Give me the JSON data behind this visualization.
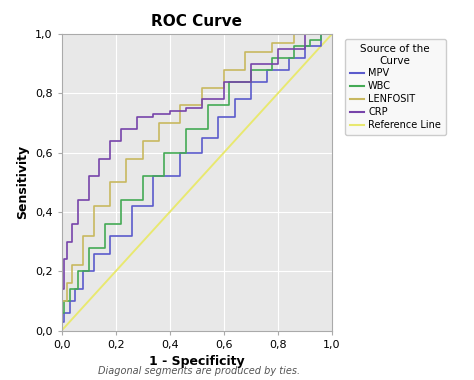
{
  "title": "ROC Curve",
  "xlabel": "1 - Specificity",
  "ylabel": "Sensitivity",
  "footnote": "Diagonal segments are produced by ties.",
  "xlim": [
    0.0,
    1.0
  ],
  "ylim": [
    0.0,
    1.0
  ],
  "xticks": [
    0.0,
    0.2,
    0.4,
    0.6,
    0.8,
    1.0
  ],
  "yticks": [
    0.0,
    0.2,
    0.4,
    0.6,
    0.8,
    1.0
  ],
  "xtick_labels": [
    "0,0",
    "0,2",
    "0,4",
    "0,6",
    "0,8",
    "1,0"
  ],
  "ytick_labels": [
    "0,0",
    "0,2",
    "0,4",
    "0,6",
    "0,8",
    "1,0"
  ],
  "plot_bg_color": "#e8e8e8",
  "fig_bg_color": "#ffffff",
  "legend_title": "Source of the\nCurve",
  "curves": {
    "MPV": {
      "color": "#5b5bcc",
      "x": [
        0.0,
        0.0,
        0.01,
        0.01,
        0.03,
        0.03,
        0.05,
        0.05,
        0.08,
        0.08,
        0.12,
        0.12,
        0.18,
        0.18,
        0.26,
        0.26,
        0.34,
        0.34,
        0.44,
        0.44,
        0.52,
        0.52,
        0.58,
        0.58,
        0.64,
        0.64,
        0.7,
        0.7,
        0.76,
        0.76,
        0.84,
        0.84,
        0.9,
        0.9,
        0.96,
        0.96,
        1.0,
        1.0
      ],
      "y": [
        0.0,
        0.03,
        0.03,
        0.06,
        0.06,
        0.1,
        0.1,
        0.14,
        0.14,
        0.2,
        0.2,
        0.26,
        0.26,
        0.32,
        0.32,
        0.42,
        0.42,
        0.52,
        0.52,
        0.6,
        0.6,
        0.65,
        0.65,
        0.72,
        0.72,
        0.78,
        0.78,
        0.84,
        0.84,
        0.88,
        0.88,
        0.92,
        0.92,
        0.96,
        0.96,
        1.0,
        1.0,
        1.0
      ]
    },
    "WBC": {
      "color": "#44aa55",
      "x": [
        0.0,
        0.0,
        0.01,
        0.01,
        0.03,
        0.03,
        0.06,
        0.06,
        0.1,
        0.1,
        0.16,
        0.16,
        0.22,
        0.22,
        0.3,
        0.3,
        0.38,
        0.38,
        0.46,
        0.46,
        0.54,
        0.54,
        0.62,
        0.62,
        0.7,
        0.7,
        0.78,
        0.78,
        0.86,
        0.86,
        0.92,
        0.92,
        0.96,
        0.96,
        1.0,
        1.0
      ],
      "y": [
        0.0,
        0.06,
        0.06,
        0.1,
        0.1,
        0.14,
        0.14,
        0.2,
        0.2,
        0.28,
        0.28,
        0.36,
        0.36,
        0.44,
        0.44,
        0.52,
        0.52,
        0.6,
        0.6,
        0.68,
        0.68,
        0.76,
        0.76,
        0.84,
        0.84,
        0.88,
        0.88,
        0.92,
        0.92,
        0.96,
        0.96,
        0.98,
        0.98,
        1.0,
        1.0,
        1.0
      ]
    },
    "LENFOSIT": {
      "color": "#c8b860",
      "x": [
        0.0,
        0.0,
        0.02,
        0.02,
        0.04,
        0.04,
        0.08,
        0.08,
        0.12,
        0.12,
        0.18,
        0.18,
        0.24,
        0.24,
        0.3,
        0.3,
        0.36,
        0.36,
        0.44,
        0.44,
        0.52,
        0.52,
        0.6,
        0.6,
        0.68,
        0.68,
        0.78,
        0.78,
        0.86,
        0.86,
        0.92,
        0.92,
        0.96,
        0.96,
        1.0,
        1.0
      ],
      "y": [
        0.0,
        0.1,
        0.1,
        0.16,
        0.16,
        0.22,
        0.22,
        0.32,
        0.32,
        0.42,
        0.42,
        0.5,
        0.5,
        0.58,
        0.58,
        0.64,
        0.64,
        0.7,
        0.7,
        0.76,
        0.76,
        0.82,
        0.82,
        0.88,
        0.88,
        0.94,
        0.94,
        0.97,
        0.97,
        1.0,
        1.0,
        1.0,
        1.0,
        1.0,
        1.0,
        1.0
      ]
    },
    "CRP": {
      "color": "#7744aa",
      "x": [
        0.0,
        0.0,
        0.01,
        0.01,
        0.02,
        0.02,
        0.04,
        0.04,
        0.06,
        0.06,
        0.1,
        0.1,
        0.14,
        0.14,
        0.18,
        0.18,
        0.22,
        0.22,
        0.28,
        0.28,
        0.34,
        0.34,
        0.4,
        0.4,
        0.46,
        0.46,
        0.52,
        0.52,
        0.6,
        0.6,
        0.7,
        0.7,
        0.8,
        0.8,
        0.9,
        0.9,
        1.0,
        1.0
      ],
      "y": [
        0.0,
        0.14,
        0.14,
        0.24,
        0.24,
        0.3,
        0.3,
        0.36,
        0.36,
        0.44,
        0.44,
        0.52,
        0.52,
        0.58,
        0.58,
        0.64,
        0.64,
        0.68,
        0.68,
        0.72,
        0.72,
        0.73,
        0.73,
        0.74,
        0.74,
        0.75,
        0.75,
        0.78,
        0.78,
        0.84,
        0.84,
        0.9,
        0.9,
        0.95,
        0.95,
        1.0,
        1.0,
        1.0
      ]
    },
    "Reference": {
      "color": "#e8e870",
      "x": [
        0.0,
        1.0
      ],
      "y": [
        0.0,
        1.0
      ]
    }
  }
}
